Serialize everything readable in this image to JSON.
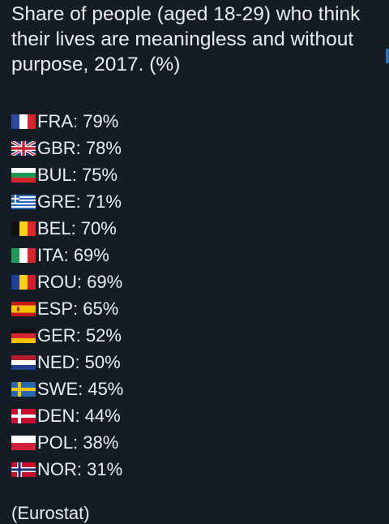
{
  "post": {
    "title": "Share of people (aged 18-29) who think their lives are meaningless and without purpose, 2017. (%)",
    "source": "(Eurostat)"
  },
  "countries": [
    {
      "code": "FRA",
      "label": "FRA: 79%",
      "flag": "france-flag-icon"
    },
    {
      "code": "GBR",
      "label": "GBR: 78%",
      "flag": "uk-flag-icon"
    },
    {
      "code": "BUL",
      "label": "BUL: 75%",
      "flag": "bulgaria-flag-icon"
    },
    {
      "code": "GRE",
      "label": "GRE: 71%",
      "flag": "greece-flag-icon"
    },
    {
      "code": "BEL",
      "label": "BEL: 70%",
      "flag": "belgium-flag-icon"
    },
    {
      "code": "ITA",
      "label": "ITA: 69%",
      "flag": "italy-flag-icon"
    },
    {
      "code": "ROU",
      "label": "ROU: 69%",
      "flag": "romania-flag-icon"
    },
    {
      "code": "ESP",
      "label": "ESP: 65%",
      "flag": "spain-flag-icon"
    },
    {
      "code": "GER",
      "label": "GER: 52%",
      "flag": "germany-flag-icon"
    },
    {
      "code": "NED",
      "label": "NED: 50%",
      "flag": "netherlands-flag-icon"
    },
    {
      "code": "SWE",
      "label": "SWE: 45%",
      "flag": "sweden-flag-icon"
    },
    {
      "code": "DEN",
      "label": "DEN: 44%",
      "flag": "denmark-flag-icon"
    },
    {
      "code": "POL",
      "label": "POL: 38%",
      "flag": "poland-flag-icon"
    },
    {
      "code": "NOR",
      "label": "NOR: 31%",
      "flag": "norway-flag-icon"
    }
  ]
}
